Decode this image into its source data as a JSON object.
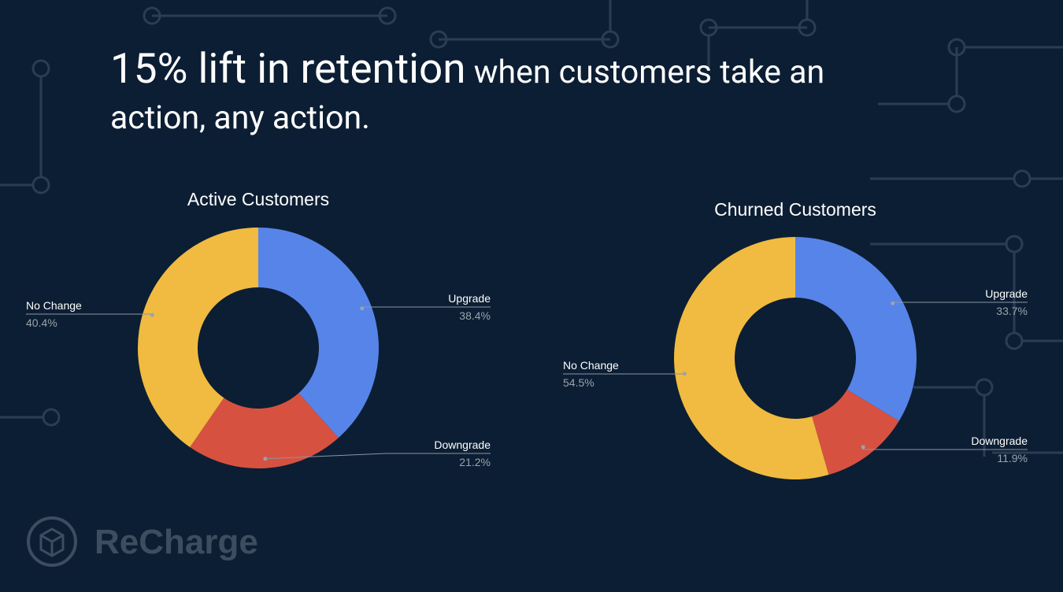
{
  "headline": {
    "emphasis": "15% lift in retention",
    "rest": "when customers take an action, any action."
  },
  "logo": "ReCharge",
  "chart_data": [
    {
      "type": "pie",
      "donut": true,
      "title": "Active Customers",
      "categories": [
        "Upgrade",
        "Downgrade",
        "No Change"
      ],
      "values": [
        38.4,
        21.2,
        40.4
      ],
      "value_labels": [
        "38.4%",
        "21.2%",
        "40.4%"
      ],
      "colors": [
        "#5784e8",
        "#d75140",
        "#f0bb40"
      ]
    },
    {
      "type": "pie",
      "donut": true,
      "title": "Churned Customers",
      "categories": [
        "Upgrade",
        "Downgrade",
        "No Change"
      ],
      "values": [
        33.7,
        11.9,
        54.5
      ],
      "value_labels": [
        "33.7%",
        "11.9%",
        "54.5%"
      ],
      "colors": [
        "#5784e8",
        "#d75140",
        "#f0bb40"
      ]
    }
  ]
}
